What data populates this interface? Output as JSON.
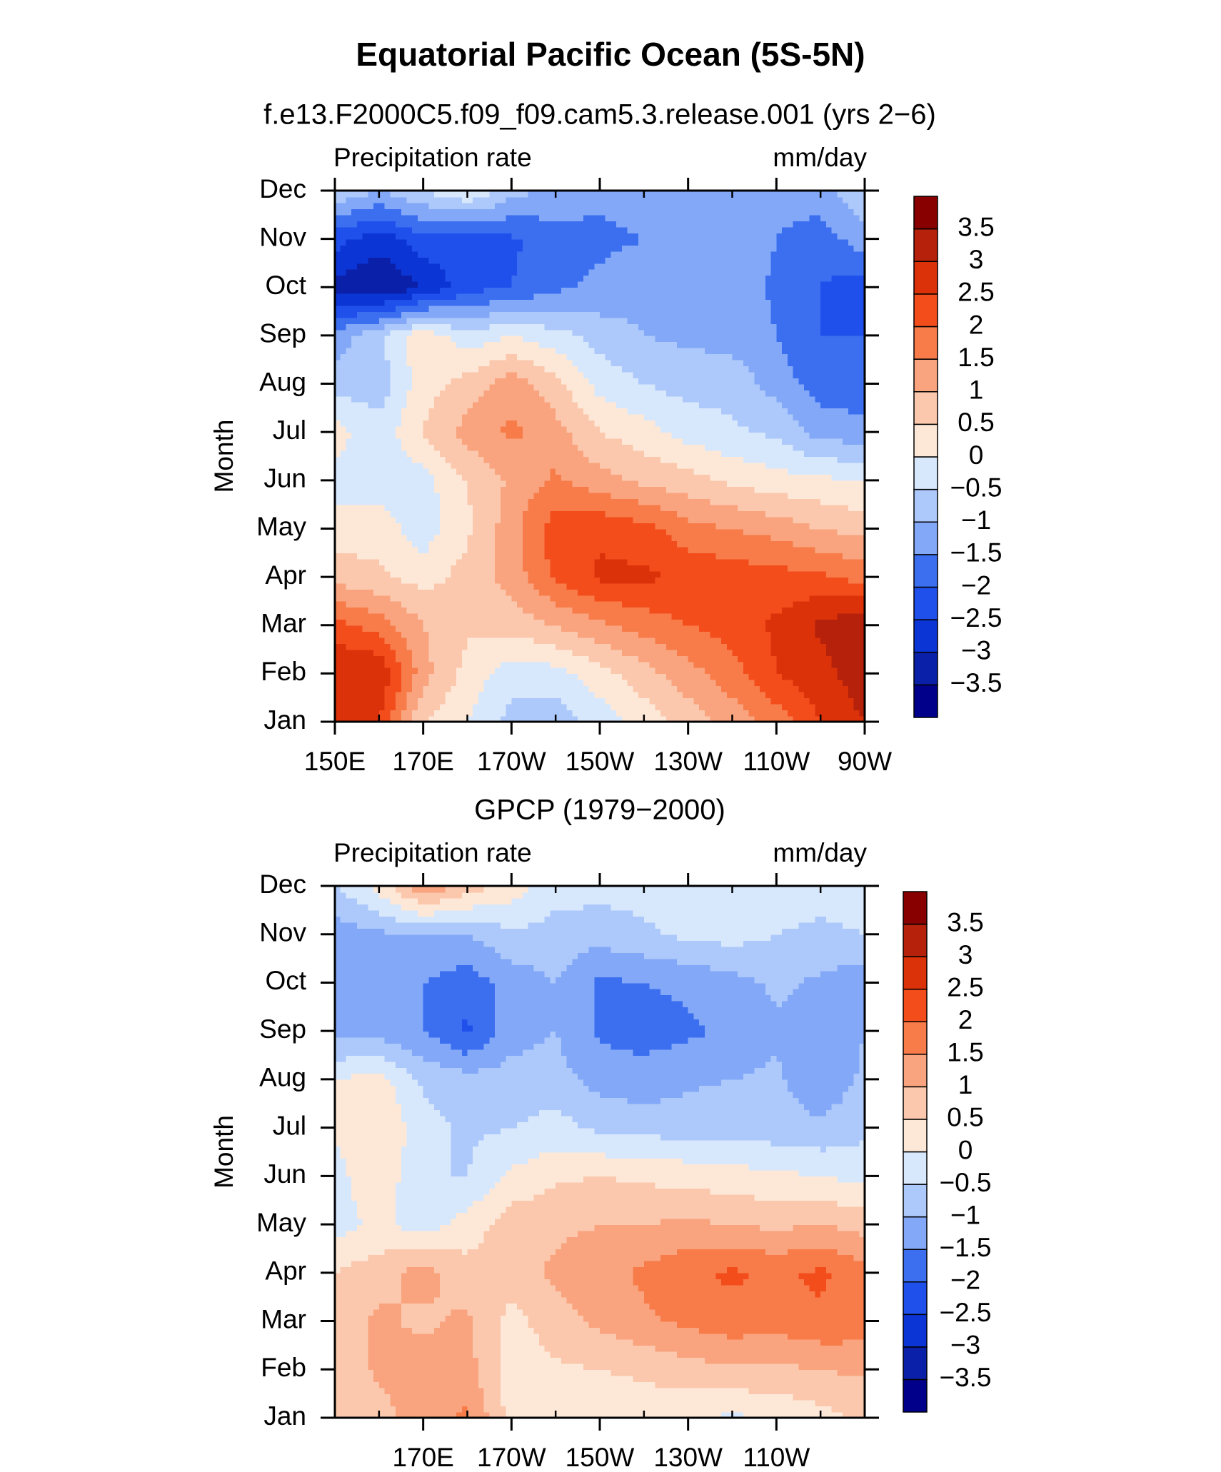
{
  "title": "Equatorial Pacific Ocean (5S-5N)",
  "chart_data": [
    {
      "type": "contour",
      "subtitle": "f.e13.F2000C5.f09_f09.cam5.3.release.001 (yrs 2−6)",
      "left_label": "Precipitation rate",
      "right_label": "mm/day",
      "ylabel": "Month",
      "x": [
        150,
        160,
        170,
        180,
        190,
        200,
        210,
        220,
        230,
        240,
        250,
        260,
        270
      ],
      "y": [
        "Jan",
        "Feb",
        "Mar",
        "Apr",
        "May",
        "Jun",
        "Jul",
        "Aug",
        "Sep",
        "Oct",
        "Nov",
        "Dec"
      ],
      "xlim": [
        150,
        270
      ],
      "xticks": [
        {
          "value": 150,
          "label": "150E"
        },
        {
          "value": 170,
          "label": "170E"
        },
        {
          "value": 190,
          "label": "170W"
        },
        {
          "value": 210,
          "label": "150W"
        },
        {
          "value": 230,
          "label": "130W"
        },
        {
          "value": 250,
          "label": "110W"
        },
        {
          "value": 270,
          "label": "90W"
        }
      ],
      "minor_xticks": [
        160,
        180,
        200,
        220,
        240,
        260
      ],
      "values": [
        [
          2.5,
          2.5,
          0.5,
          0,
          -0.7,
          -0.8,
          -0.3,
          0.2,
          0.7,
          1.2,
          1.7,
          2.5,
          3
        ],
        [
          3,
          3,
          1.2,
          0.3,
          -0.3,
          -0.2,
          0.3,
          0.8,
          1.3,
          1.8,
          2.5,
          2.8,
          3.3
        ],
        [
          2.2,
          1.8,
          1,
          0.6,
          0.7,
          1,
          1.4,
          1.7,
          2,
          2.2,
          2.6,
          3.1,
          3.5
        ],
        [
          0.8,
          0.6,
          0.3,
          0.7,
          1.2,
          2.1,
          2.6,
          2.6,
          2.4,
          2.3,
          2.2,
          2.1,
          1.8
        ],
        [
          0.2,
          0.3,
          -0.3,
          0.4,
          1.3,
          2.3,
          2.4,
          2.2,
          1.7,
          1.5,
          1.3,
          1,
          0.8
        ],
        [
          -0.2,
          -0.3,
          -0.2,
          0.5,
          1.1,
          1.6,
          1.2,
          0.9,
          0.7,
          0.4,
          0.2,
          0.1,
          0
        ],
        [
          0.2,
          -0.3,
          0.5,
          1.2,
          1.6,
          1.2,
          0.5,
          0.2,
          -0.2,
          -0.4,
          -0.6,
          -1.2,
          -1.3
        ],
        [
          -0.7,
          -0.8,
          0.3,
          0.7,
          1.3,
          0.7,
          -0.2,
          -0.5,
          -0.7,
          -0.7,
          -1.2,
          -1.8,
          -1.8
        ],
        [
          -1.3,
          -0.6,
          0.4,
          -0.3,
          0,
          -0.3,
          -0.7,
          -1,
          -1.1,
          -1.2,
          -1.5,
          -2,
          -2
        ],
        [
          -3.2,
          -3.5,
          -3,
          -2.2,
          -2,
          -1.6,
          -1.4,
          -1.2,
          -1.1,
          -1.2,
          -1.6,
          -2,
          -2.3
        ],
        [
          -2.3,
          -2.8,
          -2.2,
          -2.3,
          -2.1,
          -1.7,
          -1.6,
          -1.5,
          -1.1,
          -1.1,
          -1.5,
          -1.8,
          -1.2
        ],
        [
          -0.6,
          -1,
          -0.5,
          0,
          -0.8,
          -1.2,
          -1.4,
          -1.3,
          -1.3,
          -1.3,
          -1.3,
          -1.2,
          -0.6
        ]
      ],
      "levels": [
        {
          "value": -3.5,
          "label": "−3.5"
        },
        {
          "value": -3,
          "label": "−3"
        },
        {
          "value": -2.5,
          "label": "−2.5"
        },
        {
          "value": -2,
          "label": "−2"
        },
        {
          "value": -1.5,
          "label": "−1.5"
        },
        {
          "value": -1,
          "label": "−1"
        },
        {
          "value": -0.5,
          "label": "−0.5"
        },
        0,
        0.5,
        1,
        1.5,
        2,
        2.5,
        3,
        3.5
      ],
      "colors": [
        "#00008b",
        "#0b20a8",
        "#0c35d6",
        "#1f50eb",
        "#3b6ff0",
        "#82a8f7",
        "#adc8fa",
        "#d8e8fc",
        "#fde8d8",
        "#fbc8ad",
        "#f9a47e",
        "#f77c4a",
        "#f44d1c",
        "#dc320a",
        "#b5210a",
        "#880000"
      ]
    },
    {
      "type": "contour",
      "subtitle": "GPCP (1979−2000)",
      "left_label": "Precipitation rate",
      "right_label": "mm/day",
      "ylabel": "Month",
      "x": [
        150,
        160,
        170,
        180,
        190,
        200,
        210,
        220,
        230,
        240,
        250,
        260,
        270
      ],
      "y": [
        "Jan",
        "Feb",
        "Mar",
        "Apr",
        "May",
        "Jun",
        "Jul",
        "Aug",
        "Sep",
        "Oct",
        "Nov",
        "Dec"
      ],
      "xlim": [
        150,
        270
      ],
      "xticks": [
        {
          "value": 170,
          "label": "170E"
        },
        {
          "value": 190,
          "label": "170W"
        },
        {
          "value": 210,
          "label": "150W"
        },
        {
          "value": 230,
          "label": "130W"
        },
        {
          "value": 250,
          "label": "110W"
        }
      ],
      "minor_xticks": [
        160,
        180,
        200,
        220,
        240,
        260
      ],
      "values": [
        [
          0.6,
          0.8,
          1.3,
          1.6,
          0.3,
          0.2,
          0.2,
          0.2,
          0.1,
          -0.1,
          0.1,
          0.3,
          0.6
        ],
        [
          0.6,
          1.1,
          1.2,
          1.2,
          0.2,
          0.4,
          0.5,
          0.6,
          0.8,
          0.9,
          0.9,
          1,
          1.1
        ],
        [
          0.7,
          1.1,
          0.9,
          1.1,
          0.3,
          0.8,
          1.1,
          1.4,
          1.6,
          1.8,
          1.7,
          1.9,
          1.8
        ],
        [
          0.5,
          0.8,
          1.2,
          0.7,
          0.8,
          1.1,
          1.3,
          1.6,
          1.9,
          2.1,
          1.9,
          2.1,
          1.7
        ],
        [
          -0.2,
          0.1,
          -0.2,
          0.2,
          0.8,
          0.9,
          1,
          1,
          1.1,
          1,
          0.9,
          1,
          0.8
        ],
        [
          -0.2,
          0.4,
          -0.5,
          -0.5,
          0.1,
          0.4,
          0.5,
          0.4,
          0.3,
          0.2,
          0.1,
          0,
          -0.2
        ],
        [
          0.1,
          0.5,
          -0.3,
          -0.6,
          -0.5,
          -0.3,
          -0.6,
          -0.7,
          -0.7,
          -0.7,
          -0.8,
          -0.9,
          -0.6
        ],
        [
          0,
          0.2,
          -0.6,
          -0.8,
          -0.8,
          -0.8,
          -1.2,
          -1.3,
          -1.1,
          -1,
          -0.9,
          -1.4,
          -0.9
        ],
        [
          -1.2,
          -1.2,
          -1.5,
          -2.1,
          -1.2,
          -1,
          -1.6,
          -1.7,
          -1.6,
          -1.4,
          -1.1,
          -1.3,
          -1
        ],
        [
          -1.1,
          -1.3,
          -1.5,
          -1.8,
          -1.3,
          -1,
          -1.6,
          -1.5,
          -1.4,
          -1.2,
          -0.9,
          -1.1,
          -1.4
        ],
        [
          -1.3,
          -1.1,
          -1,
          -1,
          -0.6,
          -0.7,
          -0.8,
          -0.6,
          -0.4,
          -0.3,
          -0.5,
          -0.6,
          -0.5
        ],
        [
          -0.5,
          0.2,
          1.4,
          0.8,
          0.3,
          -0.3,
          -0.3,
          -0.3,
          -0.3,
          -0.4,
          -0.3,
          -0.3,
          -0.3
        ]
      ],
      "levels": [
        {
          "value": -3.5,
          "label": "−3.5"
        },
        {
          "value": -3,
          "label": "−3"
        },
        {
          "value": -2.5,
          "label": "−2.5"
        },
        {
          "value": -2,
          "label": "−2"
        },
        {
          "value": -1.5,
          "label": "−1.5"
        },
        {
          "value": -1,
          "label": "−1"
        },
        {
          "value": -0.5,
          "label": "−0.5"
        },
        0,
        0.5,
        1,
        1.5,
        2,
        2.5,
        3,
        3.5
      ],
      "colors": [
        "#00008b",
        "#0b20a8",
        "#0c35d6",
        "#1f50eb",
        "#3b6ff0",
        "#82a8f7",
        "#adc8fa",
        "#d8e8fc",
        "#fde8d8",
        "#fbc8ad",
        "#f9a47e",
        "#f77c4a",
        "#f44d1c",
        "#dc320a",
        "#b5210a",
        "#880000"
      ]
    }
  ]
}
